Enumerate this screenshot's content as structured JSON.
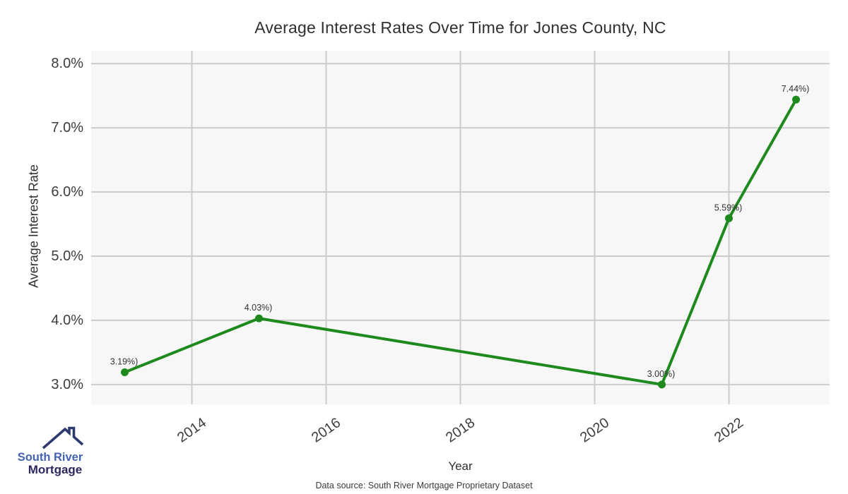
{
  "title": "Average Interest Rates Over Time for Jones County, NC",
  "footer": "Data source: South River Mortgage Proprietary Dataset",
  "logo": {
    "line1": "South River",
    "line2": "Mortgage"
  },
  "colors": {
    "line": "#1e8a1e",
    "grid": "#cccccc",
    "plot_bg": "#f7f7f7",
    "text": "#333333",
    "logo_blue": "#4463b0",
    "logo_navy": "#29275f",
    "logo_roof": "#2e3a6e"
  },
  "chart_data": {
    "type": "line",
    "title": "Average Interest Rates Over Time for Jones County, NC",
    "xlabel": "Year",
    "ylabel": "Average Interest Rate",
    "x": [
      2013,
      2015,
      2021,
      2022,
      2023
    ],
    "y": [
      3.19,
      4.03,
      3.0,
      5.59,
      7.44
    ],
    "point_labels": [
      "3.19%)",
      "4.03%)",
      "3.00%)",
      "5.59%)",
      "7.44%)"
    ],
    "x_ticks": [
      2014,
      2016,
      2018,
      2020,
      2022
    ],
    "y_ticks": [
      {
        "value": 3,
        "label": "3.0%"
      },
      {
        "value": 4,
        "label": "4.0%"
      },
      {
        "value": 5,
        "label": "5.0%"
      },
      {
        "value": 6,
        "label": "6.0%"
      },
      {
        "value": 7,
        "label": "7.0%"
      },
      {
        "value": 8,
        "label": "8.0%"
      }
    ],
    "xlim": [
      2012.5,
      2023.5
    ],
    "ylim": [
      2.69,
      8.2
    ],
    "grid": true,
    "legend": false
  }
}
